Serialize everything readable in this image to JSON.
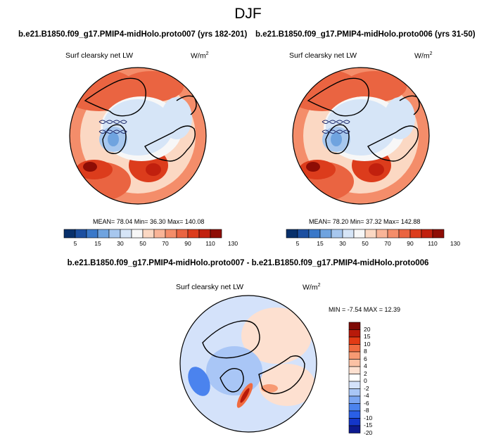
{
  "figure": {
    "season_title": "DJF",
    "diff_title": "b.e21.B1850.f09_g17.PMIP4-midHolo.proto007 - b.e21.B1850.f09_g17.PMIP4-midHolo.proto006"
  },
  "panels": [
    {
      "case_title": "b.e21.B1850.f09_g17.PMIP4-midHolo.proto007 (yrs 182-201)",
      "variable": "Surf clearsky net LW",
      "units": "W/m",
      "units_sup": "2",
      "stats": "MEAN=  78.04  Min=  36.30  Max= 140.08"
    },
    {
      "case_title": "b.e21.B1850.f09_g17.PMIP4-midHolo.proto006 (yrs 31-50)",
      "variable": "Surf clearsky net LW",
      "units": "W/m",
      "units_sup": "2",
      "stats": "MEAN=  78.20  Min=  37.32  Max= 142.88"
    },
    {
      "variable": "Surf clearsky net LW",
      "units": "W/m",
      "units_sup": "2",
      "stats": "MIN =  -7.54  MAX =  12.39"
    }
  ],
  "colors": {
    "abs_scale": [
      "#08306b",
      "#1c4fa0",
      "#3a78c9",
      "#6fa3df",
      "#a7c7ee",
      "#d6e5f7",
      "#f7f7f7",
      "#fbd8c3",
      "#f9b497",
      "#f48d6a",
      "#ea6441",
      "#dc3c1c",
      "#c1200e",
      "#8e0d05"
    ],
    "diff_scale": [
      "#0d1a8f",
      "#1436c9",
      "#2a5fe6",
      "#4b83ee",
      "#7aa5f2",
      "#a9c6f6",
      "#d4e2fa",
      "#ffffff",
      "#fde0d0",
      "#fbc1a4",
      "#f79a73",
      "#f06b40",
      "#e23b15",
      "#b81a0a",
      "#7e0a05"
    ],
    "land_outline": "#000000",
    "ocean_line": "#1f2a6b"
  },
  "chart_data": [
    {
      "type": "heatmap",
      "projection": "north-polar-stereographic",
      "title": "b.e21.B1850.f09_g17.PMIP4-midHolo.proto007 (yrs 182-201)",
      "variable": "Surf clearsky net LW",
      "units": "W/m2",
      "mean": 78.04,
      "min": 36.3,
      "max": 140.08,
      "colorbar_labels": [
        "5",
        "15",
        "30",
        "50",
        "70",
        "90",
        "110",
        "130"
      ],
      "colorbar_levels": [
        5,
        10,
        15,
        20,
        30,
        40,
        50,
        60,
        70,
        80,
        90,
        100,
        110,
        120,
        130
      ]
    },
    {
      "type": "heatmap",
      "projection": "north-polar-stereographic",
      "title": "b.e21.B1850.f09_g17.PMIP4-midHolo.proto006 (yrs 31-50)",
      "variable": "Surf clearsky net LW",
      "units": "W/m2",
      "mean": 78.2,
      "min": 37.32,
      "max": 142.88,
      "colorbar_labels": [
        "5",
        "15",
        "30",
        "50",
        "70",
        "90",
        "110",
        "130"
      ],
      "colorbar_levels": [
        5,
        10,
        15,
        20,
        30,
        40,
        50,
        60,
        70,
        80,
        90,
        100,
        110,
        120,
        130
      ]
    },
    {
      "type": "heatmap",
      "projection": "north-polar-stereographic",
      "title": "b.e21.B1850.f09_g17.PMIP4-midHolo.proto007 - b.e21.B1850.f09_g17.PMIP4-midHolo.proto006",
      "variable": "Surf clearsky net LW",
      "units": "W/m2",
      "min": -7.54,
      "max": 12.39,
      "colorbar_labels": [
        "20",
        "15",
        "10",
        "8",
        "6",
        "4",
        "2",
        "0",
        "-2",
        "-4",
        "-6",
        "-8",
        "-10",
        "-15",
        "-20"
      ]
    }
  ]
}
